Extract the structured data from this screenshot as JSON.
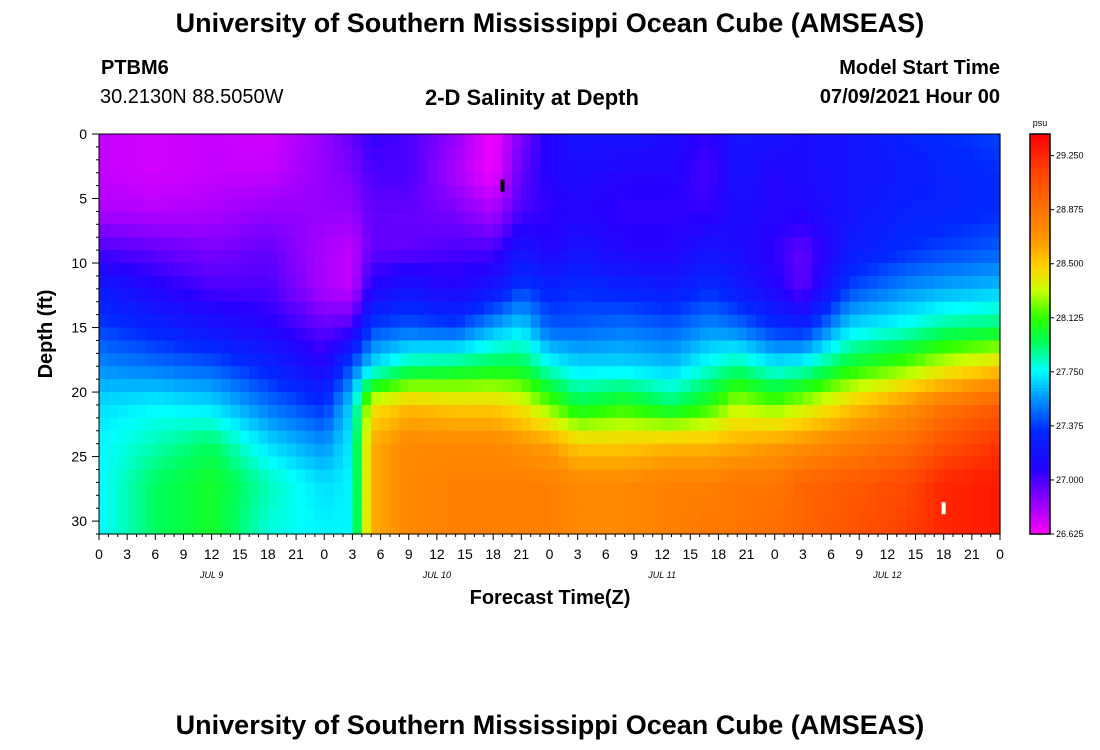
{
  "header": {
    "title_top": "University of Southern Mississippi Ocean Cube (AMSEAS)",
    "title_bottom": "University of Southern Mississippi Ocean Cube (AMSEAS)",
    "station_id": "PTBM6",
    "station_coords": "30.2130N  88.5050W",
    "plot_title": "2-D Salinity at Depth",
    "model_start_label": "Model Start Time",
    "model_start_value": "07/09/2021 Hour 00"
  },
  "chart_data": {
    "type": "heatmap",
    "title": "2-D Salinity at Depth",
    "xlabel": "Forecast Time(Z)",
    "ylabel": "Depth (ft)",
    "xlim": [
      0,
      96
    ],
    "ylim": [
      31,
      0
    ],
    "x_ticks": [
      0,
      3,
      6,
      9,
      12,
      15,
      18,
      21,
      24,
      27,
      30,
      33,
      36,
      39,
      42,
      45,
      48,
      51,
      54,
      57,
      60,
      63,
      66,
      69,
      72,
      75,
      78,
      81,
      84,
      87,
      90,
      93,
      96
    ],
    "x_tick_labels": [
      "0",
      "3",
      "6",
      "9",
      "12",
      "15",
      "18",
      "21",
      "0",
      "3",
      "6",
      "9",
      "12",
      "15",
      "18",
      "21",
      "0",
      "3",
      "6",
      "9",
      "12",
      "15",
      "18",
      "21",
      "0",
      "3",
      "6",
      "9",
      "12",
      "15",
      "18",
      "21",
      "0"
    ],
    "day_labels": [
      {
        "hour": 12,
        "label": "JUL 9"
      },
      {
        "hour": 36,
        "label": "JUL 10"
      },
      {
        "hour": 60,
        "label": "JUL 11"
      },
      {
        "hour": 84,
        "label": "JUL 12"
      }
    ],
    "y_ticks": [
      0,
      5,
      10,
      15,
      20,
      25,
      30
    ],
    "y_tick_labels": [
      "0",
      "5",
      "10",
      "15",
      "20",
      "25",
      "30"
    ],
    "colorbar": {
      "unit": "psu",
      "range": [
        26.625,
        29.4
      ],
      "tick_values": [
        26.625,
        27.0,
        27.375,
        27.75,
        28.125,
        28.5,
        28.875,
        29.25
      ],
      "tick_labels": [
        "26.625",
        "27.000",
        "27.375",
        "27.750",
        "28.125",
        "28.500",
        "28.875",
        "29.250"
      ]
    },
    "markers": [
      {
        "hour": 43,
        "depth": 4,
        "color": "#000000"
      },
      {
        "hour": 90,
        "depth": 29,
        "color": "#ffffff"
      }
    ],
    "depths": [
      0,
      3,
      6,
      9,
      12,
      15,
      18,
      21,
      24,
      27,
      31
    ],
    "profiles": [
      {
        "hour": 0,
        "values": [
          26.75,
          26.75,
          26.8,
          27.0,
          27.25,
          27.4,
          27.55,
          27.7,
          27.75,
          27.75,
          27.75
        ]
      },
      {
        "hour": 6,
        "values": [
          26.72,
          26.72,
          26.78,
          26.95,
          27.1,
          27.3,
          27.5,
          27.75,
          27.85,
          27.95,
          27.95
        ]
      },
      {
        "hour": 12,
        "values": [
          26.75,
          26.75,
          26.8,
          26.9,
          27.0,
          27.2,
          27.45,
          27.7,
          27.95,
          28.05,
          28.05
        ]
      },
      {
        "hour": 18,
        "values": [
          26.72,
          26.75,
          26.85,
          26.95,
          27.0,
          27.1,
          27.3,
          27.5,
          27.7,
          27.85,
          27.8
        ]
      },
      {
        "hour": 24,
        "values": [
          26.85,
          26.85,
          26.85,
          26.8,
          26.8,
          26.95,
          27.1,
          27.35,
          27.55,
          27.7,
          27.75
        ]
      },
      {
        "hour": 27,
        "values": [
          26.95,
          26.9,
          26.85,
          26.75,
          26.75,
          27.0,
          27.45,
          27.7,
          27.75,
          27.75,
          27.75
        ]
      },
      {
        "hour": 29,
        "values": [
          27.05,
          27.0,
          26.95,
          26.95,
          27.1,
          27.4,
          27.7,
          28.4,
          28.6,
          28.6,
          28.6
        ]
      },
      {
        "hour": 33,
        "values": [
          27.0,
          27.0,
          26.95,
          26.95,
          27.2,
          27.45,
          27.9,
          28.55,
          28.75,
          28.75,
          28.75
        ]
      },
      {
        "hour": 38,
        "values": [
          26.85,
          26.8,
          26.9,
          27.0,
          27.1,
          27.4,
          27.95,
          28.5,
          28.75,
          28.8,
          28.8
        ]
      },
      {
        "hour": 42,
        "values": [
          26.65,
          26.65,
          26.8,
          27.0,
          27.2,
          27.6,
          28.0,
          28.5,
          28.75,
          28.8,
          28.8
        ]
      },
      {
        "hour": 45,
        "values": [
          26.9,
          26.95,
          27.0,
          27.2,
          27.4,
          27.7,
          28.0,
          28.4,
          28.7,
          28.8,
          28.8
        ]
      },
      {
        "hour": 48,
        "values": [
          27.1,
          27.1,
          27.05,
          27.1,
          27.3,
          27.45,
          27.8,
          28.2,
          28.65,
          28.8,
          28.8
        ]
      },
      {
        "hour": 51,
        "values": [
          27.2,
          27.15,
          27.1,
          27.2,
          27.35,
          27.45,
          27.7,
          28.0,
          28.5,
          28.75,
          28.75
        ]
      },
      {
        "hour": 56,
        "values": [
          27.2,
          27.1,
          27.05,
          27.1,
          27.3,
          27.5,
          27.7,
          28.1,
          28.5,
          28.75,
          28.75
        ]
      },
      {
        "hour": 61,
        "values": [
          27.15,
          27.1,
          27.05,
          27.1,
          27.25,
          27.45,
          27.65,
          27.95,
          28.55,
          28.8,
          28.8
        ]
      },
      {
        "hour": 65,
        "values": [
          27.05,
          27.0,
          27.05,
          27.2,
          27.35,
          27.55,
          27.8,
          28.1,
          28.55,
          28.8,
          28.85
        ]
      },
      {
        "hour": 68,
        "values": [
          27.2,
          27.2,
          27.15,
          27.15,
          27.25,
          27.5,
          27.9,
          28.3,
          28.6,
          28.85,
          28.85
        ]
      },
      {
        "hour": 72,
        "values": [
          27.2,
          27.1,
          27.1,
          27.05,
          27.1,
          27.35,
          27.75,
          28.2,
          28.65,
          28.85,
          28.9
        ]
      },
      {
        "hour": 75,
        "values": [
          27.15,
          27.15,
          27.1,
          26.95,
          26.95,
          27.3,
          27.8,
          28.3,
          28.7,
          28.95,
          28.95
        ]
      },
      {
        "hour": 80,
        "values": [
          27.2,
          27.2,
          27.2,
          27.25,
          27.4,
          27.7,
          28.05,
          28.5,
          28.8,
          29.0,
          29.05
        ]
      },
      {
        "hour": 86,
        "values": [
          27.3,
          27.25,
          27.3,
          27.35,
          27.55,
          27.8,
          28.2,
          28.7,
          28.9,
          29.1,
          29.15
        ]
      },
      {
        "hour": 90,
        "values": [
          27.35,
          27.3,
          27.3,
          27.4,
          27.6,
          27.9,
          28.35,
          28.85,
          29.05,
          29.25,
          29.25
        ]
      },
      {
        "hour": 96,
        "values": [
          27.4,
          27.35,
          27.35,
          27.45,
          27.65,
          27.95,
          28.5,
          29.0,
          29.2,
          29.3,
          29.3
        ]
      }
    ]
  }
}
